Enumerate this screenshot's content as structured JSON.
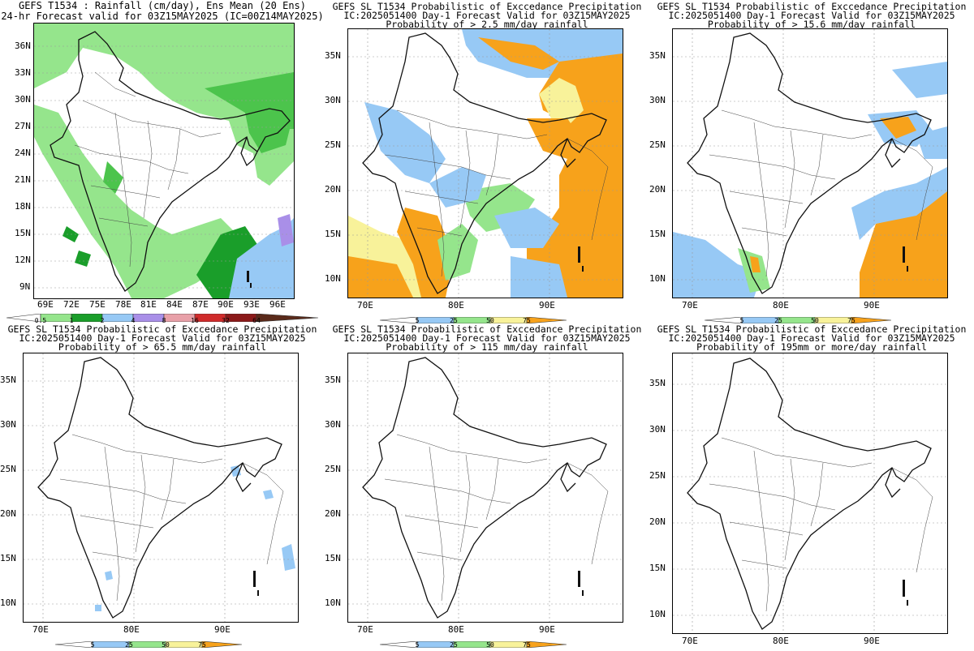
{
  "colors": {
    "light_green": "#95e58c",
    "green": "#4cc44c",
    "dark_green": "#1a9e2a",
    "light_blue": "#97c9f5",
    "purple": "#a98fe8",
    "pink": "#e8a0a8",
    "red": "#d02b2b",
    "dark_red": "#8b1a1a",
    "yellow": "#f8f29a",
    "orange": "#f7a21b",
    "outline": "#111111"
  },
  "panels": [
    {
      "id": "p1",
      "title_lines": [
        "GEFS T1534 : Rainfall (cm/day), Ens Mean (20 Ens)",
        "24-hr Forecast valid for 03Z15MAY2025 (IC=00Z14MAY2025)"
      ],
      "lat_labels": [
        "36N",
        "33N",
        "30N",
        "27N",
        "24N",
        "21N",
        "18N",
        "15N",
        "12N",
        "9N"
      ],
      "lon_labels": [
        "69E",
        "72E",
        "75E",
        "78E",
        "81E",
        "84E",
        "87E",
        "90E",
        "93E",
        "96E"
      ],
      "colorbar_ticks": [
        "0.5",
        "1",
        "2",
        "4",
        "8",
        "16",
        "32",
        "64"
      ],
      "colorbar_icon": "colorbar-triangles-icon"
    },
    {
      "id": "p2",
      "title_lines": [
        "GEFS SL T1534 Probabilistic of Exccedance Precipitation",
        "IC:2025051400 Day-1 Forecast Valid for 03Z15MAY2025",
        "Probability of > 2.5 mm/day rainfall"
      ],
      "lat_labels": [
        "35N",
        "30N",
        "25N",
        "20N",
        "15N",
        "10N"
      ],
      "lon_labels": [
        "70E",
        "80E",
        "90E"
      ],
      "colorbar_ticks": [
        "5",
        "25",
        "50",
        "75"
      ]
    },
    {
      "id": "p3",
      "title_lines": [
        "GEFS SL T1534 Probabilistic of Exccedance Precipitation",
        "IC:2025051400 Day-1 Forecast Valid for 03Z15MAY2025",
        "Probability of > 15.6 mm/day rainfall"
      ],
      "lat_labels": [
        "35N",
        "30N",
        "25N",
        "20N",
        "15N",
        "10N"
      ],
      "lon_labels": [
        "70E",
        "80E",
        "90E"
      ],
      "colorbar_ticks": [
        "5",
        "25",
        "50",
        "75"
      ]
    },
    {
      "id": "p4",
      "title_lines": [
        "GEFS SL T1534 Probabilistic of Exccedance Precipitation",
        "IC:2025051400 Day-1 Forecast Valid for 03Z15MAY2025",
        "Probability of > 65.5 mm/day rainfall"
      ],
      "lat_labels": [
        "35N",
        "30N",
        "25N",
        "20N",
        "15N",
        "10N"
      ],
      "lon_labels": [
        "70E",
        "80E",
        "90E"
      ],
      "colorbar_ticks": [
        "5",
        "25",
        "50",
        "75"
      ]
    },
    {
      "id": "p5",
      "title_lines": [
        "GEFS SL T1534 Probabilistic of Exccedance Precipitation",
        "IC:2025051400 Day-1 Forecast Valid for 03Z15MAY2025",
        "Probability of > 115 mm/day rainfall"
      ],
      "lat_labels": [
        "35N",
        "30N",
        "25N",
        "20N",
        "15N",
        "10N"
      ],
      "lon_labels": [
        "70E",
        "80E",
        "90E"
      ],
      "colorbar_ticks": [
        "5",
        "25",
        "50",
        "75"
      ]
    },
    {
      "id": "p6",
      "title_lines": [
        "GEFS SL T1534 Probabilistic of Exccedance Precipitation",
        "IC:2025051400 Day-1 Forecast Valid for 03Z15MAY2025",
        "Probability of 195mm or more/day rainfall"
      ],
      "lat_labels": [
        "35N",
        "30N",
        "25N",
        "20N",
        "15N",
        "10N"
      ],
      "lon_labels": [
        "70E",
        "80E",
        "90E"
      ],
      "colorbar_ticks": [
        "5",
        "25",
        "50",
        "75"
      ]
    }
  ]
}
